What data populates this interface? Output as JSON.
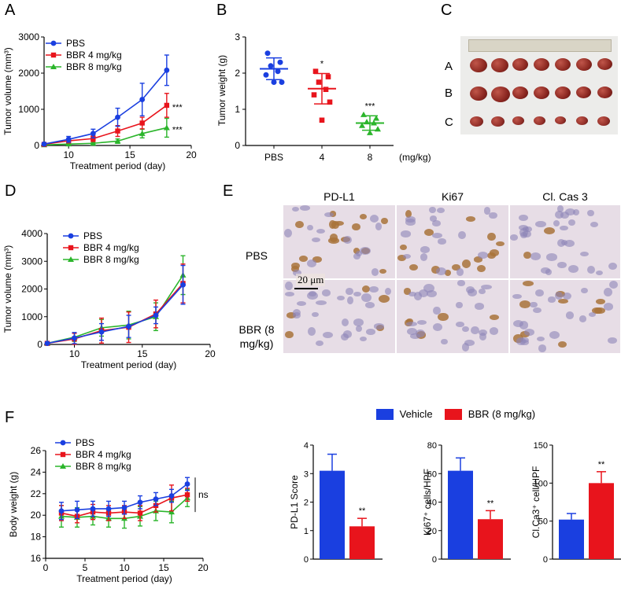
{
  "panel_letters": [
    "A",
    "B",
    "C",
    "D",
    "E",
    "F"
  ],
  "colors": {
    "pbs": "#1a3fe0",
    "bbr4": "#e8141c",
    "bbr8": "#2bb52b",
    "vehicle": "#1a3fe0",
    "bbr": "#e8141c"
  },
  "chart_data": [
    {
      "id": "A",
      "type": "line",
      "xlabel": "Treatment period (day)",
      "ylabel": "Tumor volume (mm³)",
      "xlim": [
        8,
        20
      ],
      "ylim": [
        0,
        3000
      ],
      "xticks": [
        10,
        15,
        20
      ],
      "yticks": [
        0,
        1000,
        2000,
        3000
      ],
      "legend": [
        "PBS",
        "BBR 4 mg/kg",
        "BBR 8 mg/kg"
      ],
      "x": [
        8,
        10,
        12,
        14,
        16,
        18
      ],
      "series": [
        {
          "name": "PBS",
          "values": [
            40,
            170,
            330,
            780,
            1270,
            2080
          ],
          "err": [
            20,
            80,
            120,
            250,
            450,
            420
          ]
        },
        {
          "name": "BBR 4 mg/kg",
          "values": [
            30,
            130,
            190,
            400,
            620,
            1110
          ],
          "err": [
            15,
            60,
            80,
            150,
            160,
            330
          ]
        },
        {
          "name": "BBR 8 mg/kg",
          "values": [
            15,
            40,
            60,
            120,
            330,
            490
          ],
          "err": [
            10,
            20,
            30,
            60,
            120,
            260
          ]
        }
      ],
      "annotations": [
        {
          "label": "***",
          "series": "BBR 4 mg/kg"
        },
        {
          "label": "***",
          "series": "BBR 8 mg/kg"
        }
      ]
    },
    {
      "id": "B",
      "type": "scatter",
      "ylabel": "Tumor weight (g)",
      "xlabel": "(mg/kg)",
      "categories": [
        "PBS",
        "4",
        "8"
      ],
      "ylim": [
        0,
        3
      ],
      "yticks": [
        0,
        1,
        2,
        3
      ],
      "points": [
        [
          2.55,
          2.3,
          2.2,
          2.05,
          1.95,
          1.75,
          1.75
        ],
        [
          2.05,
          1.9,
          1.75,
          1.55,
          1.4,
          1.2,
          0.7
        ],
        [
          0.85,
          0.75,
          0.65,
          0.62,
          0.55,
          0.45,
          0.35
        ]
      ],
      "means": [
        2.12,
        1.57,
        0.62
      ],
      "sd": [
        0.3,
        0.42,
        0.2
      ],
      "significance": [
        "",
        "*",
        "***"
      ]
    },
    {
      "id": "D",
      "type": "line",
      "xlabel": "Treatment period (day)",
      "ylabel": "Tumor volume (mm³)",
      "xlim": [
        8,
        20
      ],
      "ylim": [
        0,
        4000
      ],
      "xticks": [
        10,
        15,
        20
      ],
      "yticks": [
        0,
        1000,
        2000,
        3000,
        4000
      ],
      "legend": [
        "PBS",
        "BBR 4 mg/kg",
        "BBR 8 mg/kg"
      ],
      "x": [
        8,
        10,
        12,
        14,
        16,
        18
      ],
      "series": [
        {
          "name": "PBS",
          "values": [
            40,
            230,
            450,
            650,
            1050,
            2150
          ],
          "err": [
            20,
            200,
            300,
            400,
            300,
            700
          ]
        },
        {
          "name": "BBR 4 mg/kg",
          "values": [
            40,
            200,
            500,
            620,
            1100,
            2200
          ],
          "err": [
            20,
            200,
            450,
            550,
            500,
            700
          ]
        },
        {
          "name": "BBR 8 mg/kg",
          "values": [
            40,
            260,
            600,
            700,
            1000,
            2500
          ],
          "err": [
            20,
            150,
            300,
            500,
            500,
            700
          ]
        }
      ]
    },
    {
      "id": "F1",
      "type": "line",
      "xlabel": "Treatment period (day)",
      "ylabel": "Body weight (g)",
      "xlim": [
        0,
        20
      ],
      "ylim": [
        16,
        26
      ],
      "xticks": [
        0,
        5,
        10,
        15,
        20
      ],
      "yticks": [
        16,
        18,
        20,
        22,
        24,
        26
      ],
      "legend": [
        "PBS",
        "BBR 4 mg/kg",
        "BBR 8 mg/kg"
      ],
      "x": [
        2,
        4,
        6,
        8,
        10,
        12,
        14,
        16,
        18
      ],
      "series": [
        {
          "name": "PBS",
          "values": [
            20.4,
            20.5,
            20.6,
            20.6,
            20.7,
            21.2,
            21.5,
            21.8,
            22.9
          ],
          "err": [
            0.8,
            0.8,
            0.7,
            0.7,
            0.6,
            0.6,
            0.6,
            0.6,
            0.6
          ]
        },
        {
          "name": "BBR 4 mg/kg",
          "values": [
            20.2,
            19.9,
            20.3,
            20.2,
            20.3,
            20.2,
            20.9,
            21.6,
            21.9
          ],
          "err": [
            0.7,
            0.6,
            0.7,
            0.7,
            0.6,
            0.7,
            0.6,
            1.2,
            0.6
          ]
        },
        {
          "name": "BBR 8 mg/kg",
          "values": [
            19.9,
            19.8,
            19.9,
            19.7,
            19.7,
            19.9,
            20.4,
            20.3,
            21.6
          ],
          "err": [
            1.0,
            0.9,
            0.8,
            0.8,
            0.9,
            0.9,
            0.9,
            1.0,
            0.8
          ]
        }
      ],
      "annotation": "ns"
    },
    {
      "id": "F2",
      "type": "bar",
      "ylabel": "PD-L1 Score",
      "categories": [
        "Vehicle",
        "BBR (8 mg/kg)"
      ],
      "values": [
        3.1,
        1.15
      ],
      "err": [
        0.58,
        0.28
      ],
      "ylim": [
        0,
        4
      ],
      "yticks": [
        0,
        1,
        2,
        3,
        4
      ],
      "significance": "**"
    },
    {
      "id": "F3",
      "type": "bar",
      "ylabel": "Ki67⁺ cells/HPF",
      "categories": [
        "Vehicle",
        "BBR (8 mg/kg)"
      ],
      "values": [
        62,
        28
      ],
      "err": [
        9,
        6
      ],
      "ylim": [
        0,
        80
      ],
      "yticks": [
        0,
        20,
        40,
        60,
        80
      ],
      "significance": "**"
    },
    {
      "id": "F4",
      "type": "bar",
      "ylabel": "Cl.Ca3⁺ cell/HPF",
      "categories": [
        "Vehicle",
        "BBR (8 mg/kg)"
      ],
      "values": [
        52,
        100
      ],
      "err": [
        8,
        15
      ],
      "ylim": [
        0,
        150
      ],
      "yticks": [
        0,
        50,
        100,
        150
      ],
      "significance": "**"
    }
  ],
  "bar_legend": [
    "Vehicle",
    "BBR (8 mg/kg)"
  ],
  "photo_C": {
    "row_labels": [
      "A",
      "B",
      "C"
    ]
  },
  "ihc_E": {
    "columns": [
      "PD-L1",
      "Ki67",
      "Cl. Cas 3"
    ],
    "rows": [
      "PBS",
      "BBR (8 mg/kg)"
    ],
    "scale_bar": "20 μm"
  }
}
